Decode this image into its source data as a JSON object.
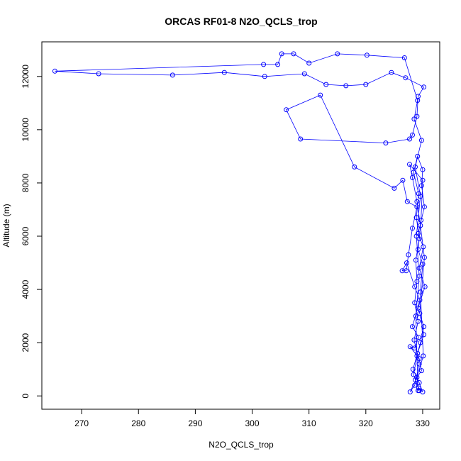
{
  "chart_data": {
    "type": "line",
    "title": "ORCAS RF01-8 N2O_QCLS_trop",
    "xlabel": "N2O_QCLS_trop",
    "ylabel": "Altitude (m)",
    "xlim": [
      263,
      333
    ],
    "ylim": [
      -500,
      13300
    ],
    "xticks": [
      270,
      280,
      290,
      300,
      310,
      320,
      330
    ],
    "yticks": [
      0,
      2000,
      4000,
      6000,
      8000,
      10000,
      12000
    ],
    "grid": false,
    "legend": "none",
    "line_color": "#0000ff",
    "marker": "open-circle",
    "series": [
      {
        "values": [
          [
            329.2,
            200
          ],
          [
            329.0,
            1500
          ],
          [
            328.8,
            3000
          ],
          [
            329.4,
            4500
          ],
          [
            328.9,
            6000
          ],
          [
            329.6,
            7500
          ],
          [
            328.7,
            8600
          ],
          [
            329.8,
            9600
          ],
          [
            328.5,
            10400
          ],
          [
            329.1,
            11100
          ],
          [
            326.8,
            12700
          ],
          [
            320.2,
            12800
          ],
          [
            315.0,
            12850
          ],
          [
            310.0,
            12500
          ],
          [
            307.3,
            12850
          ],
          [
            305.2,
            12850
          ],
          [
            304.5,
            12450
          ],
          [
            302.0,
            12450
          ],
          [
            265.3,
            12200
          ],
          [
            273.0,
            12100
          ],
          [
            286.0,
            12050
          ],
          [
            295.1,
            12150
          ],
          [
            302.2,
            12000
          ],
          [
            309.2,
            12100
          ],
          [
            313.0,
            11700
          ],
          [
            316.5,
            11650
          ],
          [
            320.0,
            11700
          ],
          [
            324.5,
            12150
          ],
          [
            327.0,
            11950
          ],
          [
            330.2,
            11600
          ],
          [
            329.2,
            11250
          ],
          [
            329.0,
            10500
          ],
          [
            328.2,
            9800
          ],
          [
            327.7,
            9650
          ],
          [
            323.5,
            9500
          ],
          [
            308.5,
            9650
          ],
          [
            306.0,
            10750
          ],
          [
            312.0,
            11300
          ],
          [
            318.0,
            8600
          ],
          [
            325.0,
            7800
          ],
          [
            326.5,
            8100
          ],
          [
            327.3,
            7300
          ],
          [
            329.0,
            7100
          ],
          [
            328.2,
            6300
          ],
          [
            327.5,
            5300
          ],
          [
            327.1,
            4700
          ],
          [
            326.4,
            4700
          ],
          [
            327.2,
            5000
          ],
          [
            328.6,
            4100
          ],
          [
            329.5,
            3600
          ],
          [
            328.2,
            2600
          ],
          [
            329.3,
            2200
          ],
          [
            328.6,
            1800
          ],
          [
            327.8,
            1850
          ],
          [
            329.4,
            1400
          ],
          [
            329.8,
            950
          ],
          [
            328.7,
            600
          ],
          [
            329.3,
            300
          ],
          [
            330.0,
            150
          ],
          [
            329.4,
            500
          ],
          [
            328.3,
            1000
          ],
          [
            329.6,
            2000
          ],
          [
            330.2,
            2600
          ],
          [
            329.2,
            3300
          ],
          [
            330.4,
            4100
          ],
          [
            329.4,
            4800
          ],
          [
            330.1,
            5600
          ],
          [
            329.2,
            6100
          ],
          [
            330.3,
            7100
          ],
          [
            329.8,
            7900
          ],
          [
            330.0,
            8500
          ],
          [
            329.1,
            9000
          ],
          [
            328.4,
            8400
          ],
          [
            329.3,
            7600
          ],
          [
            328.9,
            6700
          ],
          [
            329.4,
            5900
          ],
          [
            328.8,
            5100
          ],
          [
            329.0,
            4300
          ],
          [
            328.6,
            3500
          ],
          [
            329.2,
            2800
          ],
          [
            328.5,
            2100
          ],
          [
            329.4,
            1200
          ],
          [
            328.6,
            400
          ],
          [
            327.8,
            150
          ],
          [
            329.0,
            700
          ],
          [
            330.1,
            1500
          ],
          [
            329.6,
            3900
          ],
          [
            330.0,
            4950
          ],
          [
            329.2,
            5500
          ],
          [
            329.7,
            6600
          ],
          [
            330.0,
            8100
          ],
          [
            327.7,
            8700
          ],
          [
            328.2,
            8200
          ],
          [
            329.0,
            7300
          ],
          [
            329.6,
            6400
          ],
          [
            330.3,
            5200
          ],
          [
            329.5,
            3100
          ],
          [
            330.2,
            2300
          ],
          [
            329.1,
            1600
          ],
          [
            328.4,
            800
          ],
          [
            329.4,
            200
          ]
        ]
      }
    ]
  }
}
